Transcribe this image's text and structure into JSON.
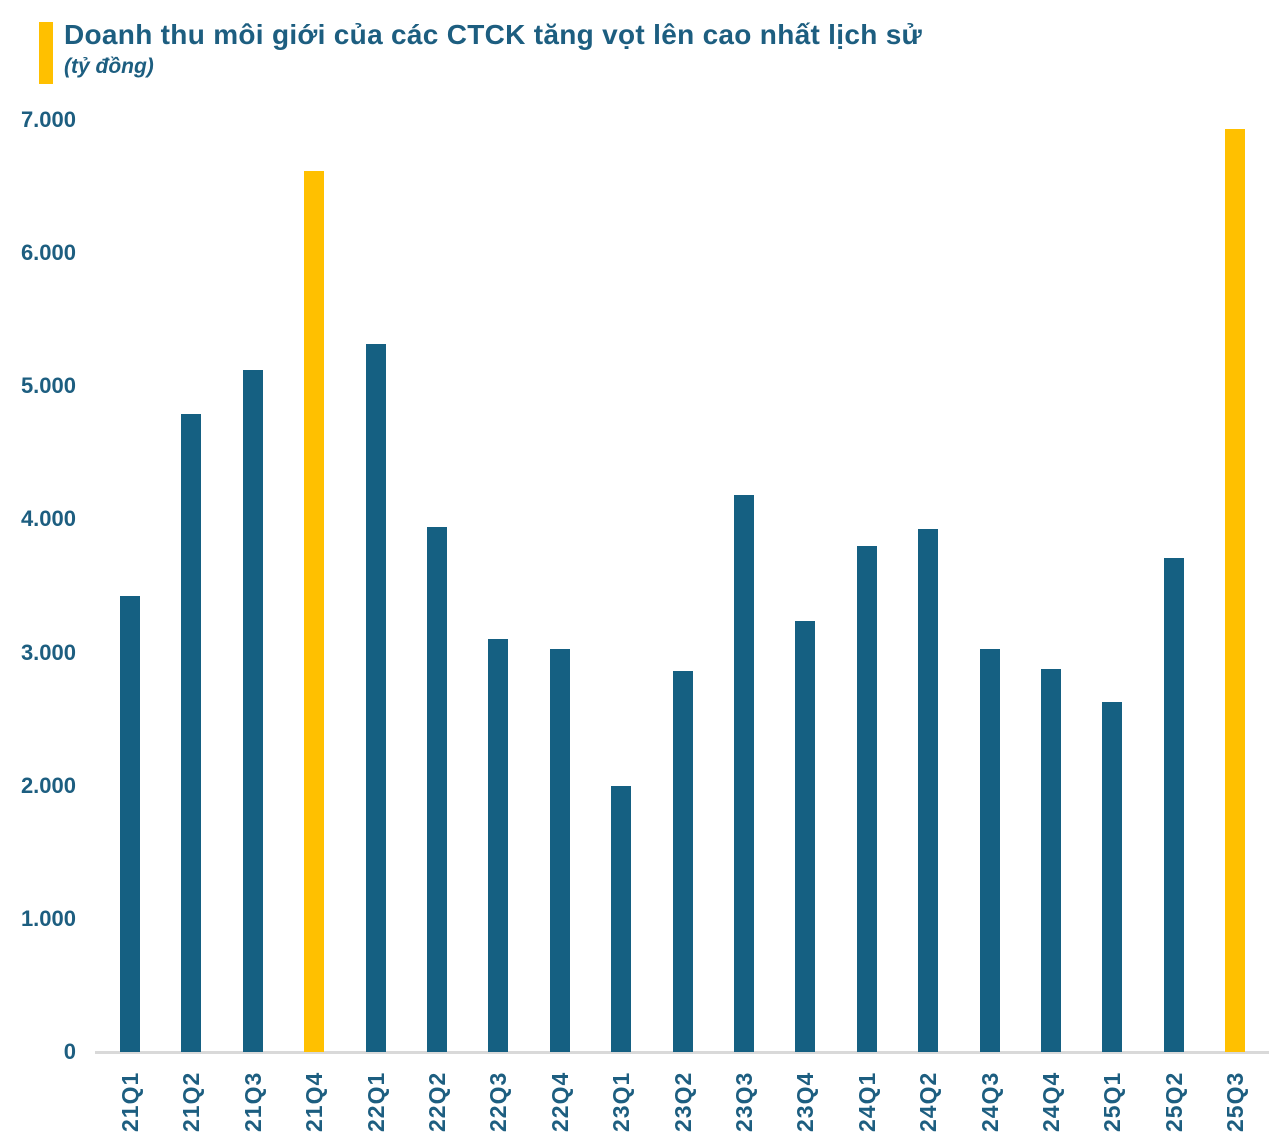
{
  "header": {
    "title": "Doanh thu môi giới của các CTCK tăng vọt lên cao nhất lịch sử",
    "subtitle": "(tỷ đồng)"
  },
  "colors": {
    "bar": "#156082",
    "highlight": "#FFC000",
    "text": "#1D5E80",
    "axis_line": "#D9D9D9"
  },
  "chart_data": {
    "type": "bar",
    "title": "Doanh thu môi giới của các CTCK tăng vọt lên cao nhất lịch sử",
    "unit": "tỷ đồng",
    "categories": [
      "21Q1",
      "21Q2",
      "21Q3",
      "21Q4",
      "22Q1",
      "22Q2",
      "22Q3",
      "22Q4",
      "23Q1",
      "23Q2",
      "23Q3",
      "23Q4",
      "24Q1",
      "24Q2",
      "24Q3",
      "24Q4",
      "25Q1",
      "25Q2",
      "25Q3"
    ],
    "values": [
      3425,
      4790,
      5120,
      6620,
      5320,
      3940,
      3105,
      3025,
      1995,
      2860,
      4180,
      3235,
      3800,
      3930,
      3030,
      2880,
      2630,
      3710,
      6930
    ],
    "highlighted_categories": [
      "21Q4",
      "25Q3"
    ],
    "xlabel": "",
    "ylabel": "",
    "ylim": [
      0,
      7000
    ],
    "ytick_interval": 1000,
    "ytick_labels": [
      "0",
      "1.000",
      "2.000",
      "3.000",
      "4.000",
      "5.000",
      "6.000",
      "7.000"
    ],
    "grid": false,
    "legend": "none"
  }
}
